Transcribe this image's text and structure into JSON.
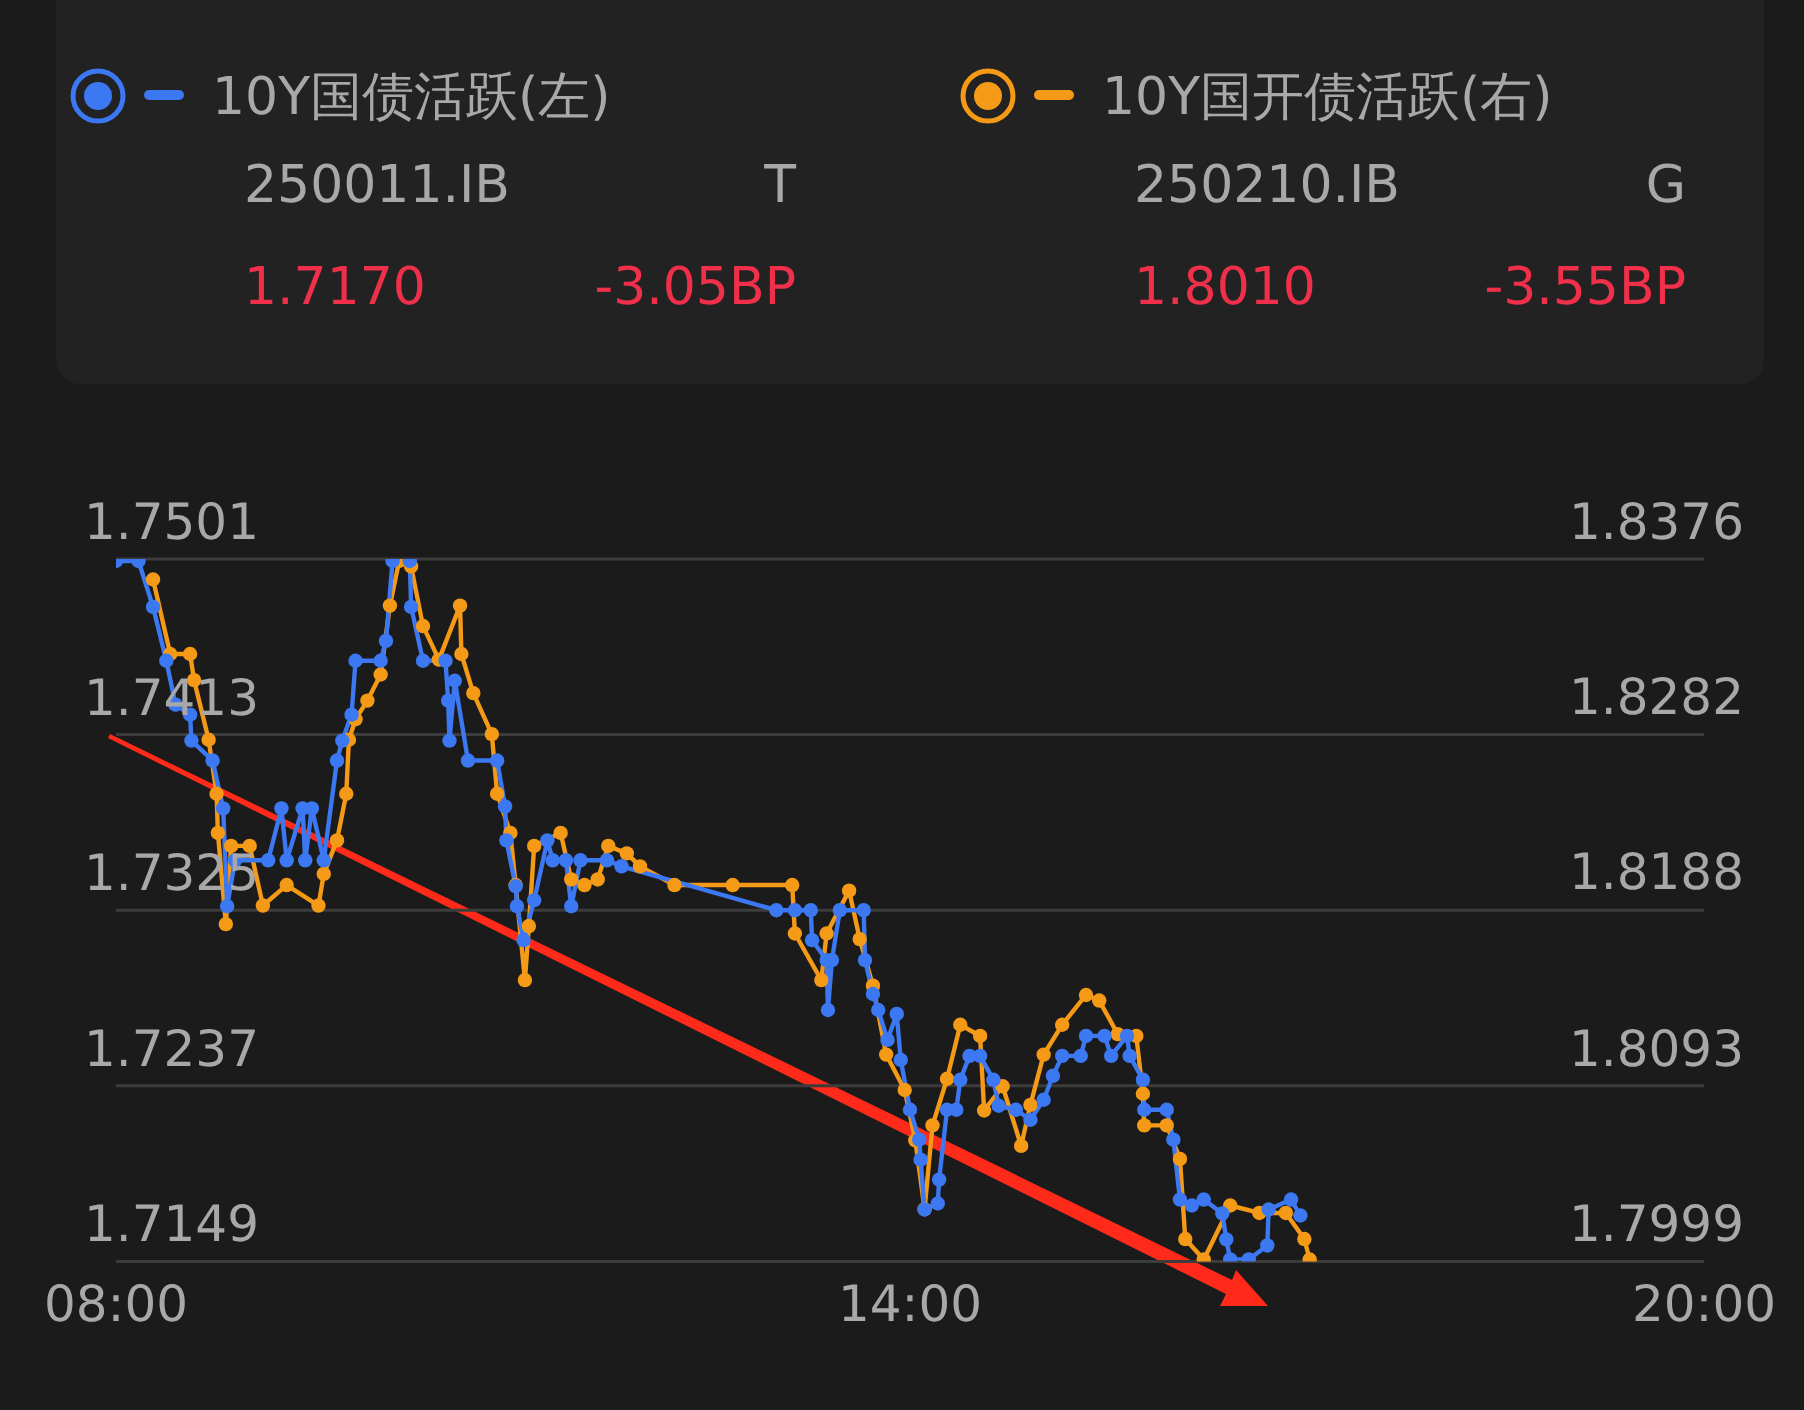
{
  "chart_data": {
    "type": "line",
    "xlim": [
      8,
      20
    ],
    "xticks": [
      {
        "value": 8,
        "label": "08:00"
      },
      {
        "value": 14,
        "label": "14:00"
      },
      {
        "value": 20,
        "label": "20:00"
      }
    ],
    "ylim": [
      1.7149,
      1.7501
    ],
    "yticks": [
      1.7149,
      1.7237,
      1.7325,
      1.7413,
      1.7501
    ],
    "y2lim": [
      1.7999,
      1.8376
    ],
    "y2ticks": [
      1.7999,
      1.8093,
      1.8188,
      1.8282,
      1.8376
    ],
    "grid": "y",
    "legend": "top",
    "marker": "circle",
    "line_style": "solid",
    "annotations": [
      "250011.IB",
      "T",
      "1.7170",
      "-3.05BP",
      "250210.IB",
      "G",
      "1.8010",
      "-3.55BP"
    ],
    "series": [
      {
        "name": "10Y国债活跃(左)",
        "color": "#3b78f2",
        "x": [
          8.0,
          8.17,
          8.28,
          8.38,
          8.45,
          8.56,
          8.57,
          8.73,
          8.81,
          8.84,
          8.9,
          9.15,
          9.25,
          9.29,
          9.41,
          9.43,
          9.48,
          9.57,
          9.67,
          9.71,
          9.78,
          9.81,
          10.0,
          10.04,
          10.09,
          10.22,
          10.23,
          10.32,
          10.49,
          10.51,
          10.52,
          10.56,
          10.66,
          10.88,
          10.94,
          10.95,
          11.02,
          11.03,
          11.08,
          11.16,
          11.26,
          11.3,
          11.4,
          11.44,
          11.51,
          11.71,
          11.82,
          12.99,
          13.13,
          13.25,
          13.26,
          13.37,
          13.38,
          13.41,
          13.47,
          13.65,
          13.66,
          13.72,
          13.76,
          13.83,
          13.9,
          13.93,
          14.0,
          14.07,
          14.08,
          14.11,
          14.21,
          14.22,
          14.28,
          14.35,
          14.38,
          14.45,
          14.53,
          14.63,
          14.67,
          14.8,
          14.91,
          15.01,
          15.08,
          15.15,
          15.29,
          15.33,
          15.47,
          15.52,
          15.64,
          15.66,
          15.76,
          15.77,
          15.94,
          15.99,
          16.04,
          16.13,
          16.22,
          16.36,
          16.39,
          16.42,
          16.56,
          16.7,
          16.71,
          16.88,
          16.95
        ],
        "values": [
          1.75,
          1.75,
          1.7477,
          1.745,
          1.7428,
          1.7423,
          1.741,
          1.74,
          1.7376,
          1.7327,
          1.735,
          1.735,
          1.7376,
          1.735,
          1.7376,
          1.735,
          1.7376,
          1.735,
          1.74,
          1.741,
          1.7423,
          1.745,
          1.745,
          1.746,
          1.75,
          1.75,
          1.7477,
          1.745,
          1.745,
          1.743,
          1.741,
          1.744,
          1.74,
          1.74,
          1.7377,
          1.736,
          1.7337,
          1.7327,
          1.731,
          1.733,
          1.736,
          1.735,
          1.735,
          1.7327,
          1.735,
          1.735,
          1.7347,
          1.7325,
          1.7325,
          1.7325,
          1.731,
          1.73,
          1.7275,
          1.73,
          1.7325,
          1.7325,
          1.73,
          1.7283,
          1.7275,
          1.726,
          1.7273,
          1.725,
          1.7225,
          1.721,
          1.72,
          1.7175,
          1.7178,
          1.719,
          1.7225,
          1.7225,
          1.724,
          1.7252,
          1.7252,
          1.724,
          1.7227,
          1.7225,
          1.722,
          1.723,
          1.7242,
          1.7252,
          1.7252,
          1.7262,
          1.7262,
          1.7252,
          1.7262,
          1.7252,
          1.724,
          1.7225,
          1.7225,
          1.721,
          1.718,
          1.7177,
          1.718,
          1.7173,
          1.716,
          1.715,
          1.715,
          1.7157,
          1.7175,
          1.718,
          1.7172
        ]
      },
      {
        "name": "10Y国开债活跃(右)",
        "color": "#f59a16",
        "axis": "y2",
        "x": [
          8.28,
          8.41,
          8.56,
          8.59,
          8.7,
          8.76,
          8.77,
          8.83,
          8.87,
          9.01,
          9.11,
          9.29,
          9.53,
          9.57,
          9.67,
          9.74,
          9.76,
          9.81,
          9.9,
          10.0,
          10.07,
          10.14,
          10.23,
          10.32,
          10.44,
          10.6,
          10.61,
          10.7,
          10.84,
          10.88,
          10.98,
          11.02,
          11.09,
          11.12,
          11.16,
          11.36,
          11.44,
          11.54,
          11.64,
          11.72,
          11.86,
          11.96,
          12.22,
          12.66,
          13.11,
          13.13,
          13.33,
          13.37,
          13.54,
          13.62,
          13.72,
          13.82,
          13.96,
          14.04,
          14.11,
          14.17,
          14.28,
          14.38,
          14.53,
          14.56,
          14.7,
          14.84,
          14.91,
          15.01,
          15.15,
          15.33,
          15.43,
          15.57,
          15.71,
          15.76,
          15.77,
          15.94,
          16.04,
          16.08,
          16.22,
          16.42,
          16.64,
          16.84,
          16.98,
          17.02
        ],
        "values": [
          1.8365,
          1.8325,
          1.8325,
          1.8311,
          1.8279,
          1.825,
          1.8229,
          1.818,
          1.8222,
          1.8222,
          1.819,
          1.8201,
          1.819,
          1.8207,
          1.8225,
          1.825,
          1.8279,
          1.829,
          1.83,
          1.8314,
          1.8351,
          1.8375,
          1.8372,
          1.834,
          1.8322,
          1.8351,
          1.8325,
          1.8304,
          1.8282,
          1.825,
          1.8229,
          1.8201,
          1.815,
          1.8179,
          1.8222,
          1.8229,
          1.8204,
          1.8201,
          1.8204,
          1.8222,
          1.8218,
          1.8211,
          1.8201,
          1.8201,
          1.8201,
          1.8175,
          1.815,
          1.8175,
          1.8198,
          1.8172,
          1.8147,
          1.811,
          1.8091,
          1.8064,
          1.8027,
          1.8072,
          1.8097,
          1.8126,
          1.812,
          1.808,
          1.8093,
          1.8061,
          1.8083,
          1.811,
          1.8126,
          1.8142,
          1.8139,
          1.8121,
          1.812,
          1.8089,
          1.8072,
          1.8072,
          1.8054,
          1.8011,
          1.8,
          1.8029,
          1.8025,
          1.8025,
          1.8011,
          1.8
        ]
      }
    ]
  }
}
